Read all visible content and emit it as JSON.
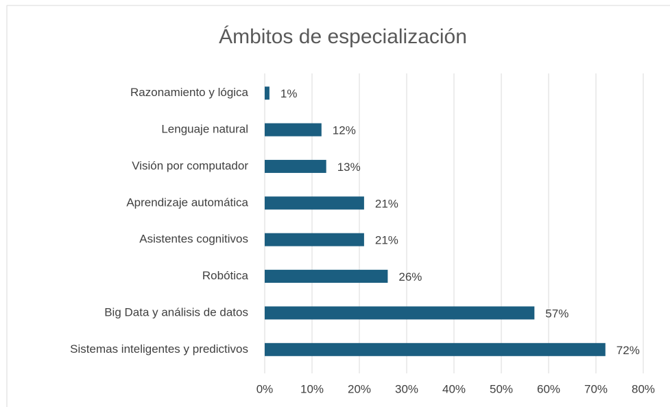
{
  "chart_data": {
    "type": "barh",
    "title": "Ámbitos de especialización",
    "categories": [
      "Razonamiento y lógica",
      "Lenguaje natural",
      "Visión por computador",
      "Aprendizaje automática",
      "Asistentes cognitivos",
      "Robótica",
      "Big Data y análisis de datos",
      "Sistemas inteligentes y predictivos"
    ],
    "values": [
      1,
      12,
      13,
      21,
      21,
      26,
      57,
      72
    ],
    "value_labels": [
      "1%",
      "12%",
      "13%",
      "21%",
      "21%",
      "26%",
      "57%",
      "72%"
    ],
    "color": "#1b5e80",
    "xlim": [
      0,
      80
    ],
    "xticks": [
      {
        "value": 0,
        "label": "0%"
      },
      {
        "value": 10,
        "label": "10%"
      },
      {
        "value": 20,
        "label": "20%"
      },
      {
        "value": 30,
        "label": "30%"
      },
      {
        "value": 40,
        "label": "40%"
      },
      {
        "value": 50,
        "label": "50%"
      },
      {
        "value": 60,
        "label": "60%"
      },
      {
        "value": 70,
        "label": "70%"
      },
      {
        "value": 80,
        "label": "80%"
      }
    ],
    "grid": true
  }
}
